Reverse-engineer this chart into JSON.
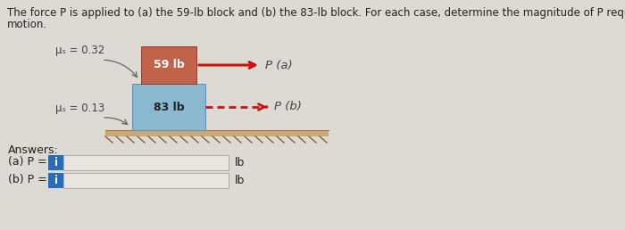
{
  "background_color": "#ddd9d3",
  "title_line1": "The force P is applied to (a) the 59-lb block and (b) the 83-lb block. For each case, determine the magnitude of P required to initiate",
  "title_line2": "motion.",
  "title_fontsize": 8.5,
  "mu_s_label": "μₛ = 0.32",
  "mu_k_label": "μₛ = 0.13",
  "block_top_color": "#c0634a",
  "block_top_label": "59 lb",
  "block_bottom_color": "#8ab8d0",
  "block_bottom_label": "83 lb",
  "arrow_color": "#cc1111",
  "Pa_label": "P (a)",
  "Pb_label": "P (b)",
  "answers_label": "Answers:",
  "a_label": "(a) P =",
  "b_label": "(b) P =",
  "lb_label": "lb",
  "input_box_color": "#e8e4de",
  "input_box_border": "#aaaaaa",
  "info_box_color": "#2a6db5",
  "info_char": "i",
  "ground_top_color": "#c8a878",
  "ground_body_color": "#b89060",
  "label_color": "#444444",
  "text_color": "#222222"
}
